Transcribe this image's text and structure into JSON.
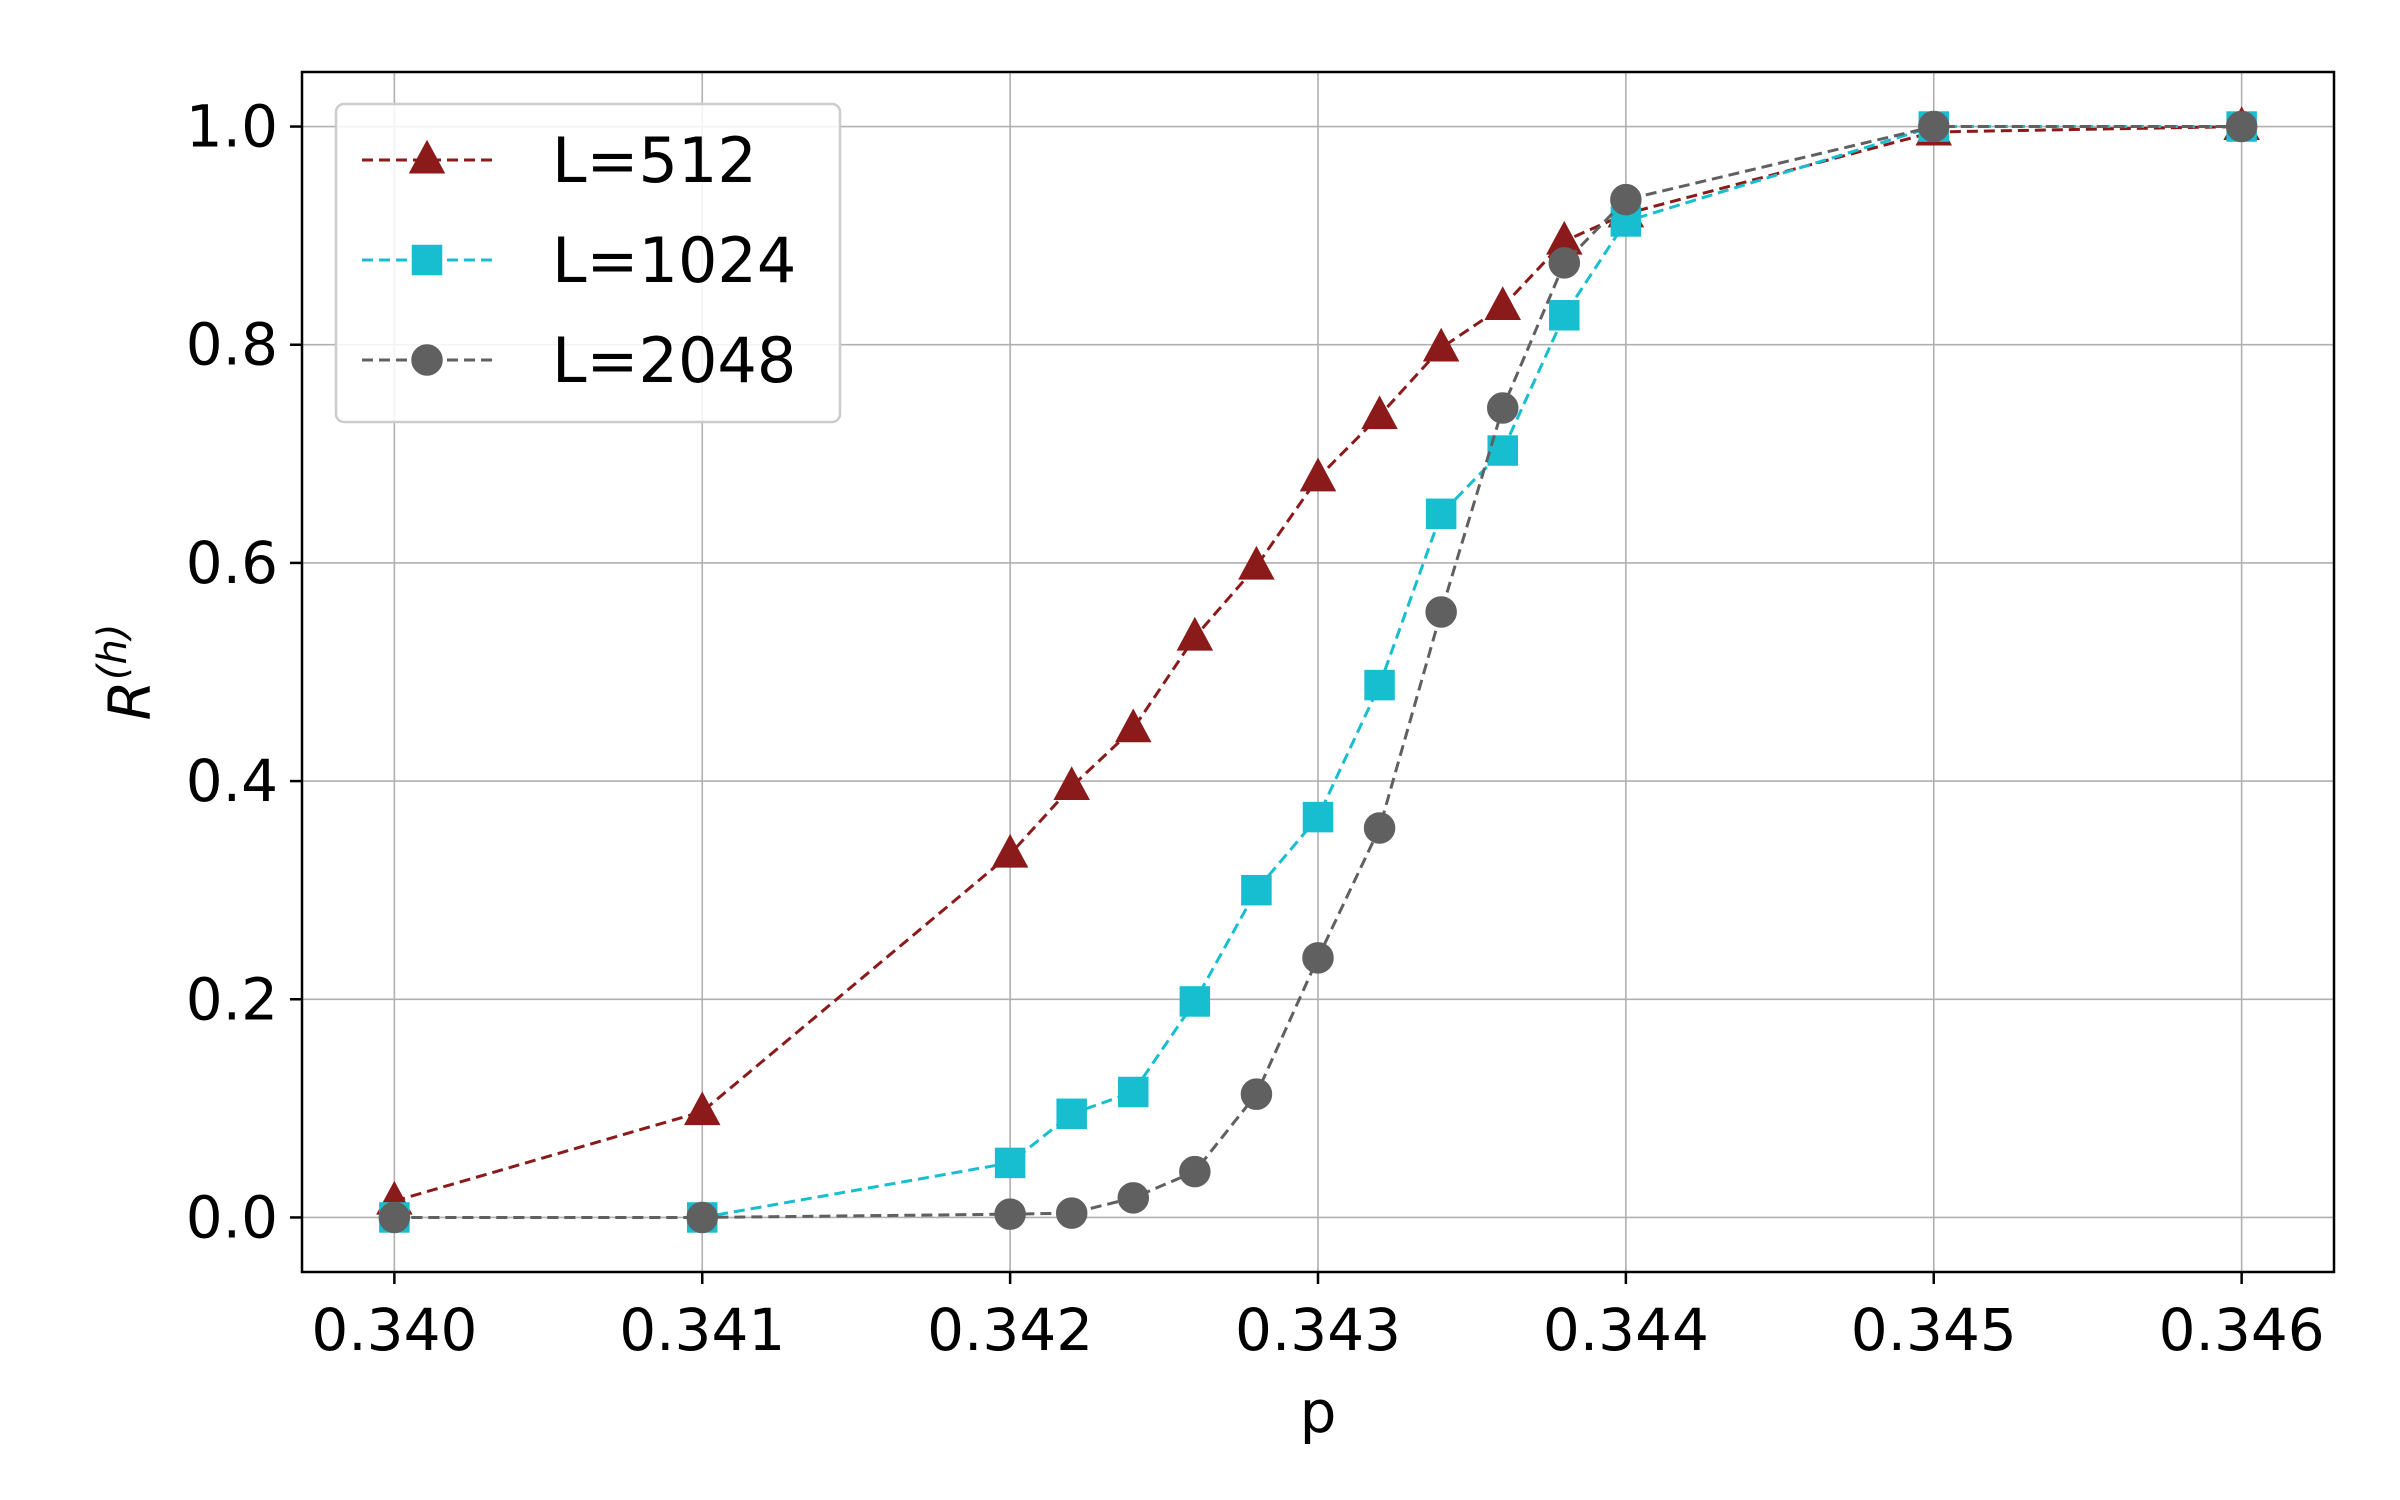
{
  "chart_data": {
    "type": "line",
    "title": "",
    "xlabel": "p",
    "ylabel": {
      "base": "R",
      "sup": "(h)"
    },
    "xlim": [
      0.3397,
      0.3463
    ],
    "ylim": [
      -0.05,
      1.05
    ],
    "xticks": [
      0.34,
      0.341,
      0.342,
      0.343,
      0.344,
      0.345,
      0.346
    ],
    "xtick_labels": [
      "0.340",
      "0.341",
      "0.342",
      "0.343",
      "0.344",
      "0.345",
      "0.346"
    ],
    "yticks": [
      0.0,
      0.2,
      0.4,
      0.6,
      0.8,
      1.0
    ],
    "ytick_labels": [
      "0.0",
      "0.2",
      "0.4",
      "0.6",
      "0.8",
      "1.0"
    ],
    "grid": true,
    "legend_position": "upper-left",
    "series": [
      {
        "name": "L=512",
        "color": "#8b1a1a",
        "marker": "triangle",
        "linestyle": "dashed",
        "x": [
          0.34,
          0.341,
          0.342,
          0.3422,
          0.3424,
          0.3426,
          0.3428,
          0.343,
          0.3432,
          0.3434,
          0.3436,
          0.3438,
          0.344,
          0.345,
          0.346
        ],
        "y": [
          0.015,
          0.097,
          0.333,
          0.395,
          0.448,
          0.532,
          0.597,
          0.678,
          0.735,
          0.797,
          0.835,
          0.895,
          0.92,
          0.995,
          1.0
        ]
      },
      {
        "name": "L=1024",
        "color": "#17becf",
        "marker": "square",
        "linestyle": "dashed",
        "x": [
          0.34,
          0.341,
          0.342,
          0.3422,
          0.3424,
          0.3426,
          0.3428,
          0.343,
          0.3432,
          0.3434,
          0.3436,
          0.3438,
          0.344,
          0.345,
          0.346
        ],
        "y": [
          0.0,
          0.0,
          0.05,
          0.095,
          0.115,
          0.198,
          0.3,
          0.367,
          0.488,
          0.645,
          0.703,
          0.827,
          0.913,
          1.0,
          1.0
        ]
      },
      {
        "name": "L=2048",
        "color": "#606060",
        "marker": "circle",
        "linestyle": "dashed",
        "x": [
          0.34,
          0.341,
          0.342,
          0.3422,
          0.3424,
          0.3426,
          0.3428,
          0.343,
          0.3432,
          0.3434,
          0.3436,
          0.3438,
          0.344,
          0.345,
          0.346
        ],
        "y": [
          0.0,
          0.0,
          0.003,
          0.004,
          0.018,
          0.042,
          0.113,
          0.238,
          0.357,
          0.555,
          0.742,
          0.875,
          0.933,
          1.0,
          1.0
        ]
      }
    ]
  }
}
